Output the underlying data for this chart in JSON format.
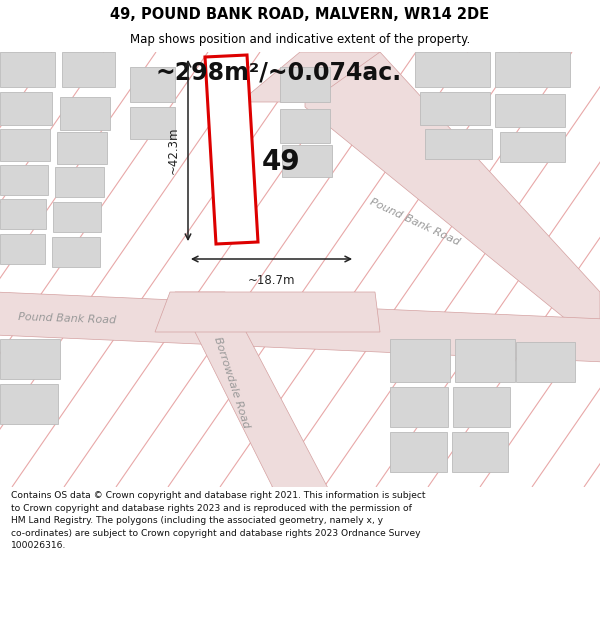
{
  "title_line1": "49, POUND BANK ROAD, MALVERN, WR14 2DE",
  "title_line2": "Map shows position and indicative extent of the property.",
  "area_text": "~298m²/~0.074ac.",
  "dim_width": "~18.7m",
  "dim_height": "~42.3m",
  "plot_number": "49",
  "road_label_upper": "Pound Bank Road",
  "road_label_lower": "Pound Bank Road",
  "road_label_borrowdale": "Borrowdale Road",
  "footer_text": "Contains OS data © Crown copyright and database right 2021. This information is subject to Crown copyright and database rights 2023 and is reproduced with the permission of HM Land Registry. The polygons (including the associated geometry, namely x, y co-ordinates) are subject to Crown copyright and database rights 2023 Ordnance Survey 100026316.",
  "background_color": "#ffffff",
  "map_bg_color": "#f0f0f0",
  "plot_fill": "#ffffff",
  "plot_edge": "#dd0000",
  "road_fill": "#eedcdc",
  "road_edge": "#d4a0a0",
  "building_fill": "#d6d6d6",
  "building_edge": "#bbbbbb",
  "diag_line_color": "#e8a8a8",
  "dim_color": "#222222",
  "title_color": "#000000",
  "label_color": "#999999",
  "footer_color": "#111111",
  "title_fontsize": 10.5,
  "subtitle_fontsize": 8.5,
  "area_fontsize": 17,
  "dim_fontsize": 8.5,
  "plot_label_fontsize": 20,
  "road_label_fontsize": 8,
  "footer_fontsize": 6.6
}
